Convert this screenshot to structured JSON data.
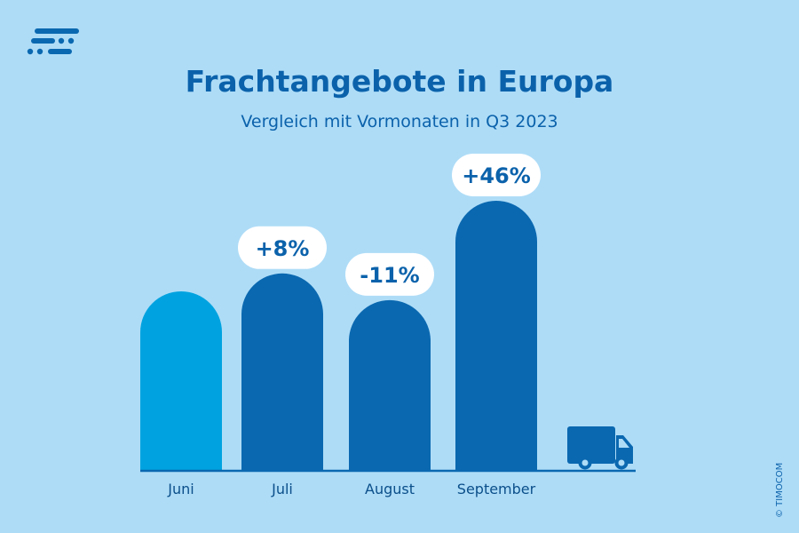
{
  "logo": {
    "icon": "timocom-logo-icon"
  },
  "copyright": "© TIMOCOM",
  "chart_data": {
    "type": "bar",
    "title": "Frachtangebote in Europa",
    "subtitle": "Vergleich mit Vormonaten in Q3 2023",
    "categories": [
      "Juni",
      "Juli",
      "August",
      "September"
    ],
    "values": [
      100,
      108,
      96.1,
      140.4
    ],
    "data_labels": [
      "",
      "+8%",
      "-11%",
      "+46%"
    ],
    "colors": [
      "#00a3e0",
      "#0a68b0",
      "#0a68b0",
      "#0a68b0"
    ],
    "ylim": [
      20,
      140.4
    ],
    "grid": false,
    "axis_icon": "truck-icon"
  }
}
